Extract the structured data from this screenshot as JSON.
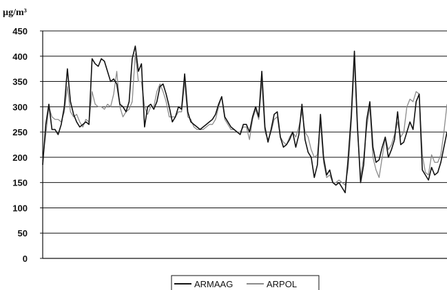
{
  "chart_data": {
    "type": "line",
    "ylabel": "µg/m³",
    "ylim": [
      0,
      450
    ],
    "yticks": [
      0,
      50,
      100,
      150,
      200,
      250,
      300,
      350,
      400,
      450
    ],
    "grid": true,
    "legend": "bottom-center",
    "series": [
      {
        "name": "ARMAAG",
        "color": "#111111",
        "values": [
          185,
          265,
          305,
          255,
          255,
          245,
          265,
          300,
          375,
          310,
          285,
          270,
          260,
          265,
          270,
          265,
          395,
          385,
          380,
          395,
          390,
          370,
          350,
          355,
          345,
          305,
          300,
          290,
          310,
          395,
          420,
          370,
          385,
          260,
          300,
          305,
          295,
          310,
          340,
          345,
          325,
          300,
          270,
          280,
          300,
          295,
          365,
          290,
          270,
          265,
          260,
          255,
          260,
          265,
          270,
          275,
          285,
          305,
          320,
          280,
          270,
          260,
          255,
          250,
          245,
          265,
          265,
          250,
          280,
          300,
          280,
          370,
          260,
          230,
          255,
          285,
          290,
          240,
          220,
          225,
          235,
          250,
          220,
          245,
          305,
          235,
          210,
          200,
          160,
          185,
          285,
          200,
          165,
          175,
          150,
          145,
          150,
          140,
          130,
          200,
          285,
          410,
          260,
          150,
          185,
          275,
          310,
          220,
          190,
          195,
          220,
          240,
          200,
          215,
          235,
          290,
          225,
          230,
          250,
          270,
          255,
          310,
          325,
          175,
          165,
          155,
          180,
          165,
          170,
          190,
          220,
          250
        ]
      },
      {
        "name": "ARPOL",
        "color": "#8a8a8a",
        "values": [
          195,
          245,
          300,
          280,
          275,
          275,
          270,
          290,
          340,
          290,
          280,
          285,
          270,
          260,
          275,
          270,
          330,
          305,
          300,
          300,
          295,
          305,
          300,
          325,
          370,
          300,
          280,
          290,
          295,
          310,
          405,
          350,
          350,
          300,
          285,
          300,
          300,
          330,
          345,
          330,
          310,
          280,
          280,
          280,
          290,
          290,
          350,
          280,
          275,
          260,
          255,
          255,
          255,
          260,
          265,
          265,
          275,
          300,
          320,
          275,
          265,
          255,
          255,
          250,
          250,
          260,
          260,
          235,
          275,
          295,
          275,
          350,
          250,
          235,
          250,
          275,
          280,
          240,
          230,
          225,
          240,
          250,
          240,
          260,
          290,
          250,
          240,
          215,
          200,
          205,
          270,
          190,
          160,
          165,
          150,
          150,
          155,
          150,
          145,
          180,
          270,
          390,
          250,
          160,
          200,
          260,
          300,
          200,
          175,
          160,
          200,
          240,
          215,
          225,
          245,
          270,
          240,
          250,
          300,
          315,
          310,
          330,
          325,
          205,
          170,
          165,
          205,
          190,
          190,
          205,
          250,
          305
        ]
      }
    ]
  }
}
